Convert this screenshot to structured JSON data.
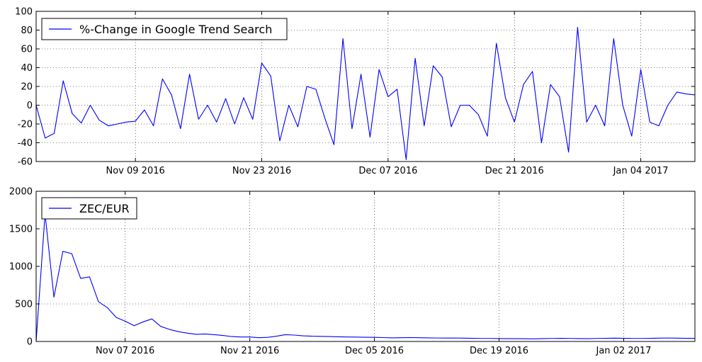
{
  "chart_data": [
    {
      "type": "line",
      "title": "",
      "xlabel": "",
      "ylabel": "",
      "ylim": [
        -60,
        100
      ],
      "yticks": [
        -60,
        -40,
        -20,
        0,
        20,
        40,
        60,
        80,
        100
      ],
      "xticks": [
        {
          "label": "Nov 09 2016",
          "x": 11
        },
        {
          "label": "Nov 23 2016",
          "x": 25
        },
        {
          "label": "Dec 07 2016",
          "x": 39
        },
        {
          "label": "Dec 21 2016",
          "x": 53
        },
        {
          "label": "Jan 04 2017",
          "x": 67
        }
      ],
      "xlim": [
        0,
        73
      ],
      "grid": true,
      "legend_position": "upper-left",
      "series": [
        {
          "name": "%-Change in Google Trend Search",
          "color": "#0000ff",
          "x": [
            0,
            1,
            2,
            3,
            4,
            5,
            6,
            7,
            8,
            9,
            10,
            11,
            12,
            13,
            14,
            15,
            16,
            17,
            18,
            19,
            20,
            21,
            22,
            23,
            24,
            25,
            26,
            27,
            28,
            29,
            30,
            31,
            32,
            33,
            34,
            35,
            36,
            37,
            38,
            39,
            40,
            41,
            42,
            43,
            44,
            45,
            46,
            47,
            48,
            49,
            50,
            51,
            52,
            53,
            54,
            55,
            56,
            57,
            58,
            59,
            60,
            61,
            62,
            63,
            64,
            65,
            66,
            67,
            68,
            69,
            70,
            71,
            72,
            73
          ],
          "values": [
            0,
            -35,
            -30,
            26,
            -9,
            -19,
            0,
            -16,
            -22,
            -20,
            -18,
            -17,
            -5,
            -22,
            28,
            11,
            -25,
            33,
            -15,
            0,
            -18,
            7,
            -20,
            8,
            -15,
            45,
            31,
            -38,
            0,
            -23,
            20,
            17,
            -14,
            -42,
            71,
            -25,
            33,
            -34,
            38,
            9,
            17,
            -58,
            50,
            -22,
            42,
            30,
            -23,
            0,
            0,
            -10,
            -33,
            66,
            8,
            -18,
            22,
            36,
            -40,
            22,
            9,
            -50,
            83,
            -18,
            0,
            -22,
            71,
            0,
            -33,
            38,
            -18,
            -22,
            0,
            14,
            12,
            11
          ]
        }
      ]
    },
    {
      "type": "line",
      "title": "",
      "xlabel": "",
      "ylabel": "",
      "ylim": [
        0,
        2000
      ],
      "yticks": [
        0,
        500,
        1000,
        1500,
        2000
      ],
      "xticks": [
        {
          "label": "Nov 07 2016",
          "x": 10
        },
        {
          "label": "Nov 21 2016",
          "x": 24
        },
        {
          "label": "Dec 05 2016",
          "x": 38
        },
        {
          "label": "Dec 19 2016",
          "x": 52
        },
        {
          "label": "Jan 02 2017",
          "x": 66
        }
      ],
      "xlim": [
        0,
        74
      ],
      "grid": true,
      "legend_position": "upper-left",
      "series": [
        {
          "name": "ZEC/EUR",
          "color": "#0000ff",
          "x": [
            0,
            1,
            2,
            3,
            4,
            5,
            6,
            7,
            8,
            9,
            10,
            11,
            12,
            13,
            14,
            15,
            16,
            17,
            18,
            19,
            20,
            21,
            22,
            23,
            24,
            25,
            26,
            27,
            28,
            29,
            30,
            31,
            32,
            33,
            34,
            35,
            36,
            37,
            38,
            39,
            40,
            41,
            42,
            43,
            44,
            45,
            46,
            47,
            48,
            49,
            50,
            51,
            52,
            53,
            54,
            55,
            56,
            57,
            58,
            59,
            60,
            61,
            62,
            63,
            64,
            65,
            66,
            67,
            68,
            69,
            70,
            71,
            72,
            73,
            74
          ],
          "values": [
            0,
            1700,
            590,
            1200,
            1170,
            840,
            860,
            530,
            450,
            320,
            270,
            210,
            260,
            300,
            200,
            160,
            130,
            110,
            95,
            100,
            90,
            80,
            65,
            60,
            60,
            50,
            55,
            70,
            90,
            85,
            75,
            70,
            68,
            65,
            62,
            60,
            58,
            56,
            55,
            52,
            48,
            50,
            52,
            50,
            48,
            46,
            45,
            46,
            44,
            42,
            40,
            40,
            38,
            37,
            37,
            36,
            35,
            38,
            40,
            42,
            40,
            38,
            37,
            40,
            42,
            44,
            42,
            40,
            40,
            42,
            44,
            46,
            44,
            42,
            42
          ]
        }
      ]
    }
  ]
}
